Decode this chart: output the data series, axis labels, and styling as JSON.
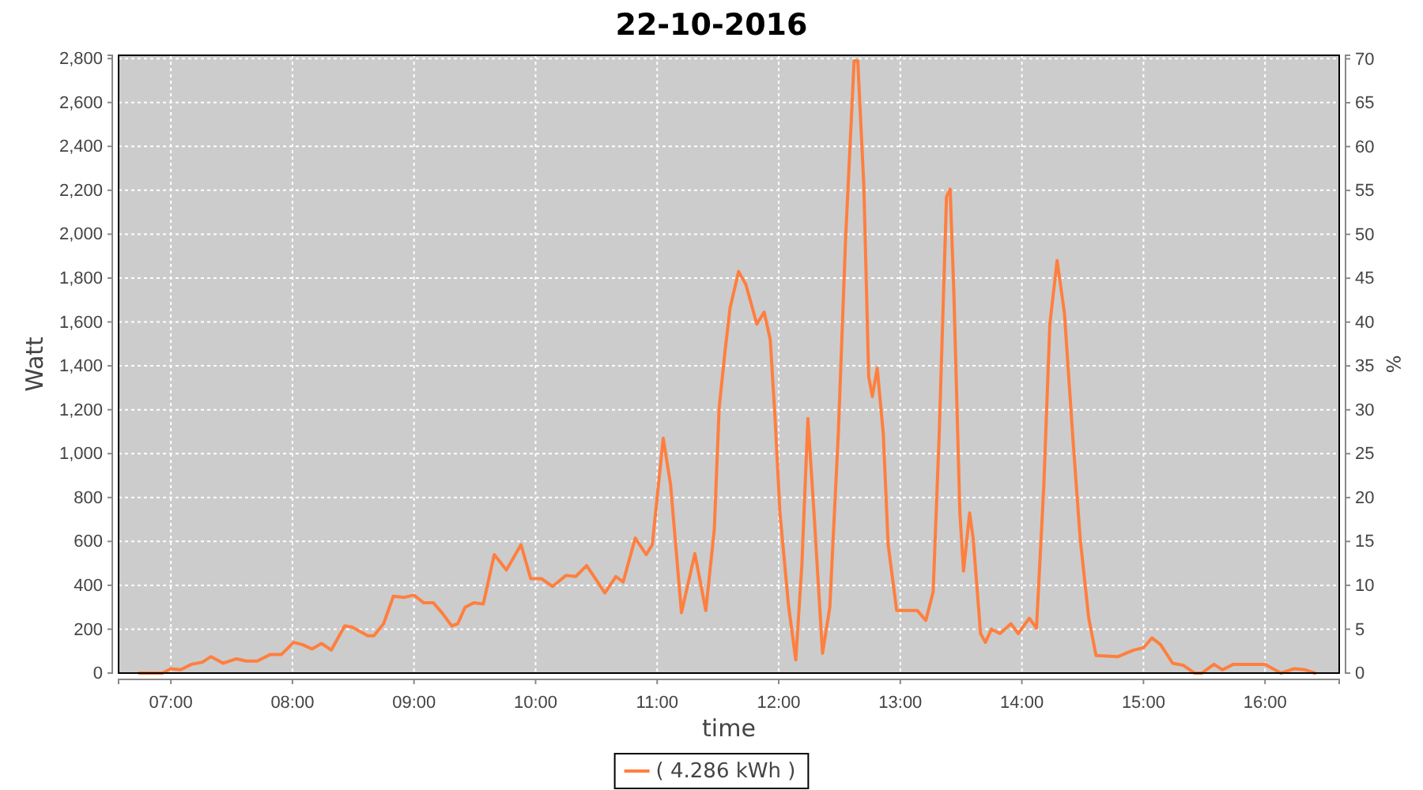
{
  "chart_data": {
    "type": "line",
    "title": "22-10-2016",
    "xlabel": "time",
    "ylabel": "Watt",
    "y2label": "%",
    "xlim": [
      6.57,
      16.61
    ],
    "xticks": [
      {
        "value": 7,
        "label": "07:00"
      },
      {
        "value": 8,
        "label": "08:00"
      },
      {
        "value": 9,
        "label": "09:00"
      },
      {
        "value": 10,
        "label": "10:00"
      },
      {
        "value": 11,
        "label": "11:00"
      },
      {
        "value": 12,
        "label": "12:00"
      },
      {
        "value": 13,
        "label": "13:00"
      },
      {
        "value": 14,
        "label": "14:00"
      },
      {
        "value": 15,
        "label": "15:00"
      },
      {
        "value": 16,
        "label": "16:00"
      }
    ],
    "ylim": [
      0,
      2815
    ],
    "yticks": [
      0,
      200,
      400,
      600,
      800,
      {
        "value": 1000,
        "label": "1,000"
      },
      {
        "value": 1200,
        "label": "1,200"
      },
      {
        "value": 1400,
        "label": "1,400"
      },
      {
        "value": 1600,
        "label": "1,600"
      },
      {
        "value": 1800,
        "label": "1,800"
      },
      {
        "value": 2000,
        "label": "2,000"
      },
      {
        "value": 2200,
        "label": "2,200"
      },
      {
        "value": 2400,
        "label": "2,400"
      },
      {
        "value": 2600,
        "label": "2,600"
      },
      {
        "value": 2800,
        "label": "2,800"
      }
    ],
    "y2lim": [
      0,
      70.4
    ],
    "y2ticks": [
      0,
      5,
      10,
      15,
      20,
      25,
      30,
      35,
      40,
      45,
      50,
      55,
      60,
      65,
      70
    ],
    "grid": true,
    "legend": "bottom",
    "series": [
      {
        "name": "( 4.286 kWh )",
        "color": "#ff7f3f",
        "x": [
          6.74,
          6.93,
          7.0,
          7.08,
          7.17,
          7.26,
          7.33,
          7.43,
          7.54,
          7.62,
          7.71,
          7.82,
          7.91,
          8.01,
          8.08,
          8.16,
          8.24,
          8.32,
          8.43,
          8.49,
          8.62,
          8.67,
          8.75,
          8.83,
          8.92,
          9.0,
          9.08,
          9.16,
          9.23,
          9.31,
          9.36,
          9.42,
          9.49,
          9.57,
          9.66,
          9.76,
          9.88,
          9.96,
          10.05,
          10.14,
          10.25,
          10.33,
          10.42,
          10.51,
          10.57,
          10.66,
          10.72,
          10.82,
          10.91,
          10.96,
          11.05,
          11.11,
          11.2,
          11.31,
          11.4,
          11.47,
          11.51,
          11.56,
          11.6,
          11.67,
          11.73,
          11.82,
          11.88,
          11.93,
          11.97,
          12.01,
          12.08,
          12.14,
          12.19,
          12.24,
          12.29,
          12.36,
          12.42,
          12.49,
          12.55,
          12.62,
          12.65,
          12.7,
          12.74,
          12.77,
          12.81,
          12.86,
          12.9,
          12.97,
          13.05,
          13.14,
          13.21,
          13.27,
          13.32,
          13.38,
          13.41,
          13.44,
          13.49,
          13.52,
          13.57,
          13.6,
          13.66,
          13.7,
          13.75,
          13.82,
          13.91,
          13.97,
          14.06,
          14.12,
          14.18,
          14.23,
          14.29,
          14.35,
          14.42,
          14.48,
          14.55,
          14.61,
          14.79,
          14.92,
          15.0,
          15.07,
          15.14,
          15.24,
          15.33,
          15.42,
          15.48,
          15.58,
          15.65,
          15.74,
          16.0,
          16.13,
          16.24,
          16.33,
          16.41
        ],
        "values": [
          0,
          0,
          20,
          15,
          40,
          50,
          75,
          45,
          65,
          55,
          55,
          85,
          85,
          140,
          130,
          110,
          135,
          105,
          215,
          210,
          170,
          170,
          225,
          350,
          345,
          355,
          320,
          320,
          275,
          215,
          225,
          300,
          320,
          315,
          540,
          470,
          585,
          430,
          430,
          395,
          445,
          440,
          490,
          415,
          365,
          440,
          415,
          615,
          540,
          585,
          1070,
          860,
          275,
          545,
          285,
          655,
          1210,
          1475,
          1665,
          1830,
          1770,
          1590,
          1645,
          1520,
          1160,
          730,
          310,
          60,
          490,
          1160,
          730,
          90,
          300,
          1090,
          1980,
          2790,
          2790,
          2220,
          1350,
          1260,
          1390,
          1090,
          585,
          285,
          285,
          285,
          240,
          370,
          1090,
          2170,
          2205,
          1740,
          730,
          465,
          730,
          610,
          180,
          140,
          200,
          180,
          225,
          180,
          250,
          205,
          850,
          1590,
          1880,
          1640,
          1065,
          610,
          250,
          80,
          75,
          105,
          115,
          160,
          130,
          45,
          35,
          0,
          0,
          40,
          15,
          40,
          40,
          0,
          20,
          15,
          0
        ]
      }
    ]
  }
}
